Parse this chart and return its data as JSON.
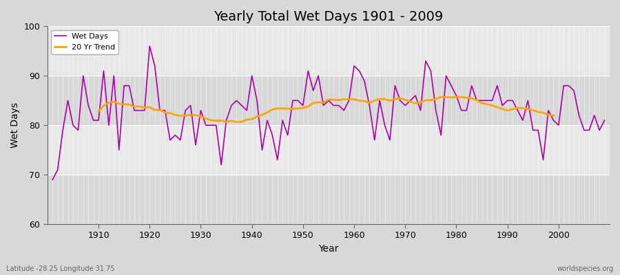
{
  "title": "Yearly Total Wet Days 1901 - 2009",
  "xlabel": "Year",
  "ylabel": "Wet Days",
  "lat_lon_label": "Latitude -28.25 Longitude 31.75",
  "credit_label": "worldspecies.org",
  "ylim": [
    60,
    100
  ],
  "yticks": [
    60,
    70,
    80,
    90,
    100
  ],
  "line_color": "#aa00aa",
  "trend_color": "#FFA500",
  "background_color": "#d8d8d8",
  "plot_bg_color": "#e8e8e8",
  "band_color_light": "#e8e8e8",
  "band_color_dark": "#d8d8d8",
  "legend_labels": [
    "Wet Days",
    "20 Yr Trend"
  ],
  "years": [
    1901,
    1902,
    1903,
    1904,
    1905,
    1906,
    1907,
    1908,
    1909,
    1910,
    1911,
    1912,
    1913,
    1914,
    1915,
    1916,
    1917,
    1918,
    1919,
    1920,
    1921,
    1922,
    1923,
    1924,
    1925,
    1926,
    1927,
    1928,
    1929,
    1930,
    1931,
    1932,
    1933,
    1934,
    1935,
    1936,
    1937,
    1938,
    1939,
    1940,
    1941,
    1942,
    1943,
    1944,
    1945,
    1946,
    1947,
    1948,
    1949,
    1950,
    1951,
    1952,
    1953,
    1954,
    1955,
    1956,
    1957,
    1958,
    1959,
    1960,
    1961,
    1962,
    1963,
    1964,
    1965,
    1966,
    1967,
    1968,
    1969,
    1970,
    1971,
    1972,
    1973,
    1974,
    1975,
    1976,
    1977,
    1978,
    1979,
    1980,
    1981,
    1982,
    1983,
    1984,
    1985,
    1986,
    1987,
    1988,
    1989,
    1990,
    1991,
    1992,
    1993,
    1994,
    1995,
    1996,
    1997,
    1998,
    1999,
    2000,
    2001,
    2002,
    2003,
    2004,
    2005,
    2006,
    2007,
    2008,
    2009
  ],
  "wet_days": [
    69,
    71,
    79,
    85,
    80,
    79,
    90,
    84,
    81,
    81,
    91,
    80,
    90,
    75,
    88,
    88,
    83,
    83,
    83,
    96,
    92,
    83,
    83,
    77,
    78,
    77,
    83,
    84,
    76,
    83,
    80,
    80,
    80,
    72,
    81,
    84,
    85,
    84,
    83,
    90,
    85,
    75,
    81,
    78,
    73,
    81,
    78,
    85,
    85,
    84,
    91,
    87,
    90,
    84,
    85,
    84,
    84,
    83,
    85,
    92,
    91,
    89,
    84,
    77,
    85,
    80,
    77,
    88,
    85,
    84,
    85,
    86,
    83,
    93,
    91,
    83,
    78,
    90,
    88,
    86,
    83,
    83,
    88,
    85,
    85,
    85,
    85,
    88,
    84,
    85,
    85,
    83,
    81,
    85,
    79,
    79,
    73,
    83,
    81,
    80,
    88,
    88,
    87,
    82,
    79,
    79,
    82,
    79,
    81
  ]
}
